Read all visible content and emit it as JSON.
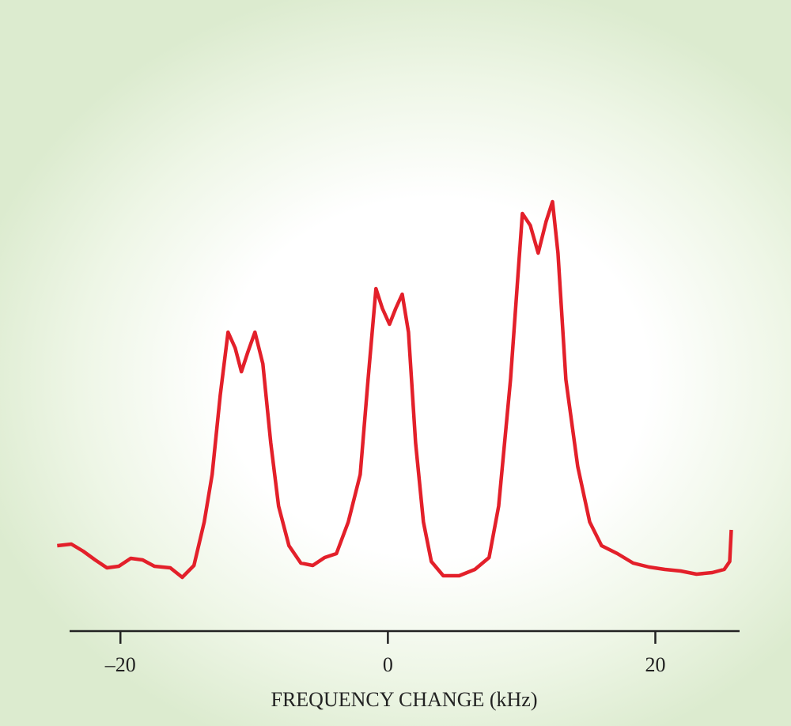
{
  "chart_data": {
    "type": "line",
    "x_label": "FREQUENCY CHANGE (kHz)",
    "x": [
      -24.73,
      -23.67,
      -22.78,
      -21.89,
      -21.01,
      -20.12,
      -19.23,
      -18.34,
      -17.46,
      -16.27,
      -15.38,
      -14.5,
      -13.73,
      -13.14,
      -12.54,
      -11.95,
      -11.42,
      -10.95,
      -10.47,
      -9.94,
      -9.35,
      -8.76,
      -8.17,
      -7.4,
      -6.51,
      -5.62,
      -4.73,
      -3.85,
      -2.96,
      -2.07,
      -1.48,
      -0.89,
      -0.41,
      0.12,
      0.59,
      1.07,
      1.54,
      2.07,
      2.66,
      3.25,
      4.14,
      5.33,
      6.51,
      7.57,
      8.28,
      9.17,
      10.06,
      10.65,
      11.24,
      11.83,
      12.31,
      12.72,
      13.31,
      14.2,
      15.09,
      15.98,
      17.16,
      18.34,
      19.53,
      20.71,
      21.89,
      23.08,
      24.26,
      25.15,
      25.56,
      25.68
    ],
    "series": [
      {
        "color": "#e3202a",
        "values": [
          0.1,
          0.104,
          0.086,
          0.064,
          0.044,
          0.048,
          0.068,
          0.064,
          0.048,
          0.044,
          0.02,
          0.05,
          0.16,
          0.28,
          0.48,
          0.64,
          0.6,
          0.54,
          0.59,
          0.64,
          0.56,
          0.36,
          0.2,
          0.1,
          0.056,
          0.05,
          0.07,
          0.08,
          0.16,
          0.28,
          0.52,
          0.75,
          0.7,
          0.66,
          0.7,
          0.736,
          0.64,
          0.36,
          0.16,
          0.06,
          0.024,
          0.024,
          0.04,
          0.07,
          0.2,
          0.52,
          0.94,
          0.91,
          0.84,
          0.92,
          0.97,
          0.84,
          0.52,
          0.3,
          0.16,
          0.1,
          0.08,
          0.056,
          0.046,
          0.04,
          0.036,
          0.028,
          0.032,
          0.04,
          0.06,
          0.14
        ]
      }
    ],
    "xlim": [
      -23.8,
      26.3
    ],
    "xticks": [
      {
        "value": -20,
        "label": "–20"
      },
      0,
      20
    ],
    "ylim": [
      0,
      1
    ]
  }
}
